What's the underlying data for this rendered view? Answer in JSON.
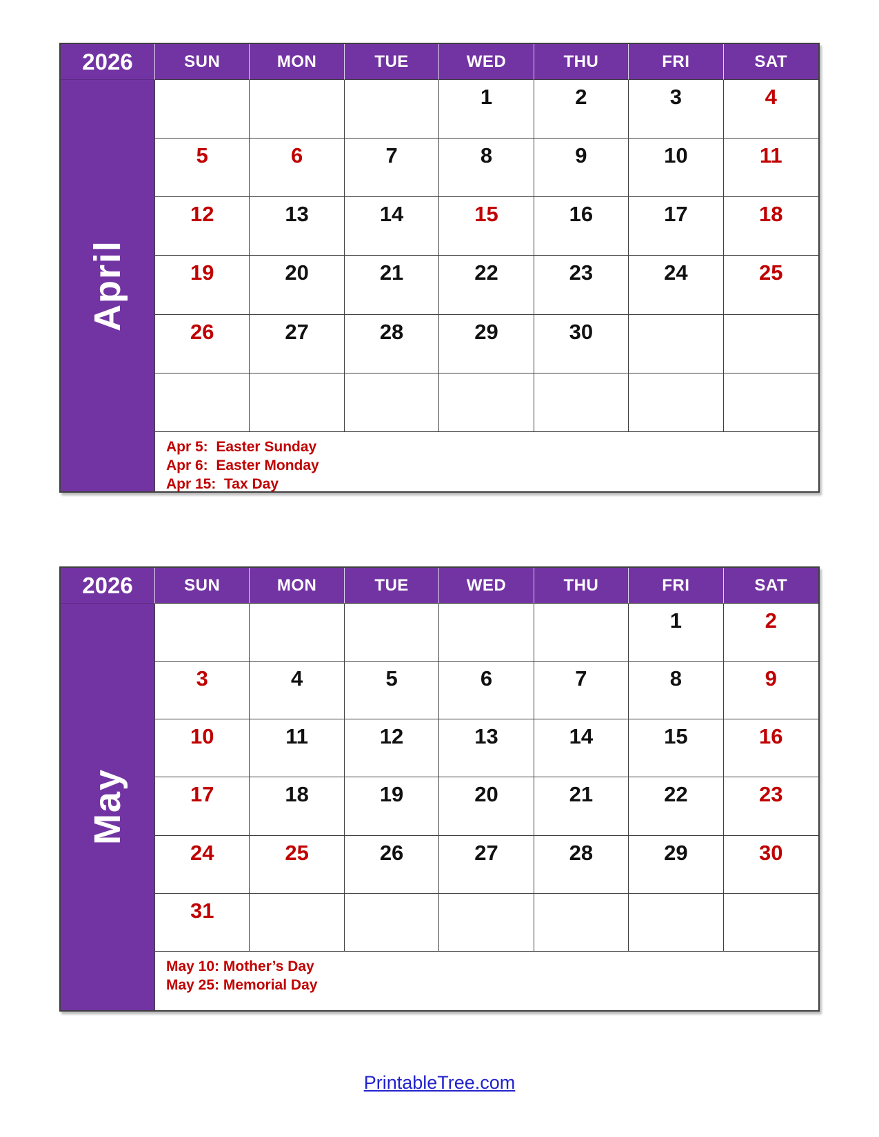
{
  "colors": {
    "purple": "#7334A3",
    "red": "#C00000",
    "ink": "#111111",
    "link": "#2222CC"
  },
  "calendars": [
    {
      "year": "2026",
      "month": "April",
      "day_headers": [
        "SUN",
        "MON",
        "TUE",
        "WED",
        "THU",
        "FRI",
        "SAT"
      ],
      "weeks": [
        [
          {
            "d": "",
            "red": false
          },
          {
            "d": "",
            "red": false
          },
          {
            "d": "",
            "red": false
          },
          {
            "d": "1",
            "red": false
          },
          {
            "d": "2",
            "red": false
          },
          {
            "d": "3",
            "red": false
          },
          {
            "d": "4",
            "red": true
          }
        ],
        [
          {
            "d": "5",
            "red": true
          },
          {
            "d": "6",
            "red": true
          },
          {
            "d": "7",
            "red": false
          },
          {
            "d": "8",
            "red": false
          },
          {
            "d": "9",
            "red": false
          },
          {
            "d": "10",
            "red": false
          },
          {
            "d": "11",
            "red": true
          }
        ],
        [
          {
            "d": "12",
            "red": true
          },
          {
            "d": "13",
            "red": false
          },
          {
            "d": "14",
            "red": false
          },
          {
            "d": "15",
            "red": true
          },
          {
            "d": "16",
            "red": false
          },
          {
            "d": "17",
            "red": false
          },
          {
            "d": "18",
            "red": true
          }
        ],
        [
          {
            "d": "19",
            "red": true
          },
          {
            "d": "20",
            "red": false
          },
          {
            "d": "21",
            "red": false
          },
          {
            "d": "22",
            "red": false
          },
          {
            "d": "23",
            "red": false
          },
          {
            "d": "24",
            "red": false
          },
          {
            "d": "25",
            "red": true
          }
        ],
        [
          {
            "d": "26",
            "red": true
          },
          {
            "d": "27",
            "red": false
          },
          {
            "d": "28",
            "red": false
          },
          {
            "d": "29",
            "red": false
          },
          {
            "d": "30",
            "red": false
          },
          {
            "d": "",
            "red": false
          },
          {
            "d": "",
            "red": false
          }
        ],
        [
          {
            "d": "",
            "red": false
          },
          {
            "d": "",
            "red": false
          },
          {
            "d": "",
            "red": false
          },
          {
            "d": "",
            "red": false
          },
          {
            "d": "",
            "red": false
          },
          {
            "d": "",
            "red": false
          },
          {
            "d": "",
            "red": false
          }
        ]
      ],
      "notes": [
        "Apr 5:  Easter Sunday",
        "Apr 6:  Easter Monday",
        "Apr 15:  Tax Day"
      ]
    },
    {
      "year": "2026",
      "month": "May",
      "day_headers": [
        "SUN",
        "MON",
        "TUE",
        "WED",
        "THU",
        "FRI",
        "SAT"
      ],
      "weeks": [
        [
          {
            "d": "",
            "red": false
          },
          {
            "d": "",
            "red": false
          },
          {
            "d": "",
            "red": false
          },
          {
            "d": "",
            "red": false
          },
          {
            "d": "",
            "red": false
          },
          {
            "d": "1",
            "red": false
          },
          {
            "d": "2",
            "red": true
          }
        ],
        [
          {
            "d": "3",
            "red": true
          },
          {
            "d": "4",
            "red": false
          },
          {
            "d": "5",
            "red": false
          },
          {
            "d": "6",
            "red": false
          },
          {
            "d": "7",
            "red": false
          },
          {
            "d": "8",
            "red": false
          },
          {
            "d": "9",
            "red": true
          }
        ],
        [
          {
            "d": "10",
            "red": true
          },
          {
            "d": "11",
            "red": false
          },
          {
            "d": "12",
            "red": false
          },
          {
            "d": "13",
            "red": false
          },
          {
            "d": "14",
            "red": false
          },
          {
            "d": "15",
            "red": false
          },
          {
            "d": "16",
            "red": true
          }
        ],
        [
          {
            "d": "17",
            "red": true
          },
          {
            "d": "18",
            "red": false
          },
          {
            "d": "19",
            "red": false
          },
          {
            "d": "20",
            "red": false
          },
          {
            "d": "21",
            "red": false
          },
          {
            "d": "22",
            "red": false
          },
          {
            "d": "23",
            "red": true
          }
        ],
        [
          {
            "d": "24",
            "red": true
          },
          {
            "d": "25",
            "red": true
          },
          {
            "d": "26",
            "red": false
          },
          {
            "d": "27",
            "red": false
          },
          {
            "d": "28",
            "red": false
          },
          {
            "d": "29",
            "red": false
          },
          {
            "d": "30",
            "red": true
          }
        ],
        [
          {
            "d": "31",
            "red": true
          },
          {
            "d": "",
            "red": false
          },
          {
            "d": "",
            "red": false
          },
          {
            "d": "",
            "red": false
          },
          {
            "d": "",
            "red": false
          },
          {
            "d": "",
            "red": false
          },
          {
            "d": "",
            "red": false
          }
        ]
      ],
      "notes": [
        "May 10: Mother’s Day",
        "May 25: Memorial Day"
      ]
    }
  ],
  "footer": {
    "link_text": "PrintableTree.com"
  }
}
